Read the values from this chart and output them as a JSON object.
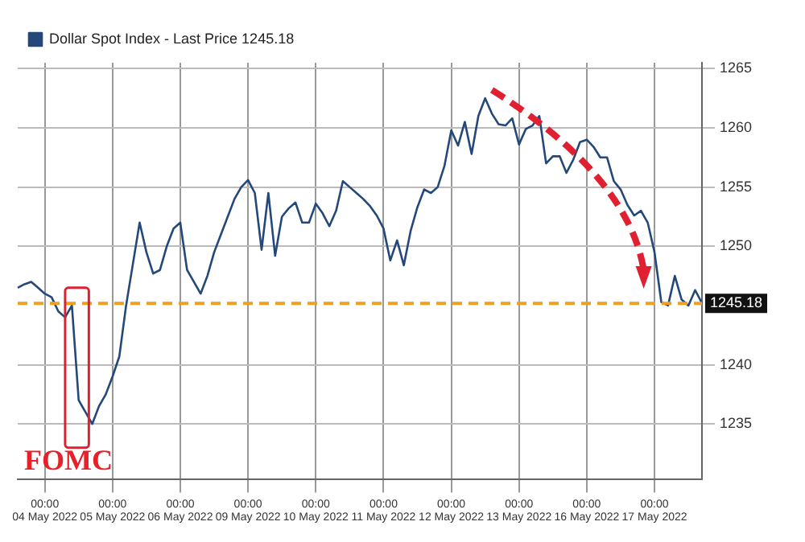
{
  "chart_data": {
    "type": "line",
    "legend": "top left",
    "grid": true,
    "categories": [
      null,
      null,
      null,
      null,
      "00:00\n04 May 2022",
      null,
      null,
      null,
      null,
      null,
      null,
      null,
      null,
      null,
      "00:00\n05 May 2022",
      null,
      null,
      null,
      null,
      null,
      null,
      null,
      null,
      null,
      "00:00\n06 May 2022",
      null,
      null,
      null,
      null,
      null,
      null,
      null,
      null,
      null,
      "00:00\n09 May 2022",
      null,
      null,
      null,
      null,
      null,
      null,
      null,
      null,
      null,
      "00:00\n10 May 2022",
      null,
      null,
      null,
      null,
      null,
      null,
      null,
      null,
      null,
      "00:00\n11 May 2022",
      null,
      null,
      null,
      null,
      null,
      null,
      null,
      null,
      null,
      "00:00\n12 May 2022",
      null,
      null,
      null,
      null,
      null,
      null,
      null,
      null,
      null,
      "00:00\n13 May 2022",
      null,
      null,
      null,
      null,
      null,
      null,
      null,
      null,
      null,
      "00:00\n16 May 2022",
      null,
      null,
      null,
      null,
      null,
      null,
      null,
      null,
      null,
      "00:00\n17 May 2022",
      null,
      null,
      null,
      null,
      null,
      null,
      null
    ],
    "series": [
      {
        "name": "Dollar Spot Index - Last Price 1245.18",
        "color": "#24487a",
        "values": [
          1246.5,
          1246.8,
          1247,
          1246.5,
          1246,
          1245.7,
          1244.5,
          1244,
          1245,
          1237,
          1236,
          1235,
          1236.5,
          1237.5,
          1239,
          1240.7,
          1245,
          1248.5,
          1252,
          1249.5,
          1247.7,
          1248,
          1250,
          1251.5,
          1252,
          1248,
          1247,
          1246,
          1247.5,
          1249.5,
          1251,
          1252.5,
          1254,
          1255,
          1255.6,
          1254.5,
          1249.7,
          1254.5,
          1249.2,
          1252.5,
          1253.2,
          1253.7,
          1252,
          1252,
          1253.6,
          1252.8,
          1251.7,
          1253,
          1255.5,
          1255,
          1254.5,
          1254,
          1253.4,
          1252.6,
          1251.5,
          1248.8,
          1250.5,
          1248.4,
          1251.3,
          1253.3,
          1254.8,
          1254.5,
          1255,
          1256.8,
          1259.8,
          1258.5,
          1260.5,
          1257.8,
          1261,
          1262.5,
          1261.2,
          1260.3,
          1260.2,
          1260.8,
          1258.6,
          1259.9,
          1260.2,
          1261,
          1257,
          1257.6,
          1257.6,
          1256.2,
          1257.3,
          1258.8,
          1259,
          1258.4,
          1257.5,
          1257.5,
          1255.5,
          1254.8,
          1253.5,
          1252.6,
          1253,
          1252,
          1249.5,
          1245.3,
          1245,
          1247.5,
          1245.5,
          1245,
          1246.3,
          1245.2
        ]
      }
    ],
    "ylim": [
      1230.3,
      1265.5
    ],
    "yticks": [
      1235,
      1240,
      1250,
      1255,
      1260,
      1265
    ],
    "ref_lines": [
      {
        "axis": "y",
        "value": 1245.18,
        "label": "1245.18",
        "color": "#f0a020",
        "line_style": "dashed"
      }
    ],
    "annotations": [
      "FOMC"
    ]
  }
}
